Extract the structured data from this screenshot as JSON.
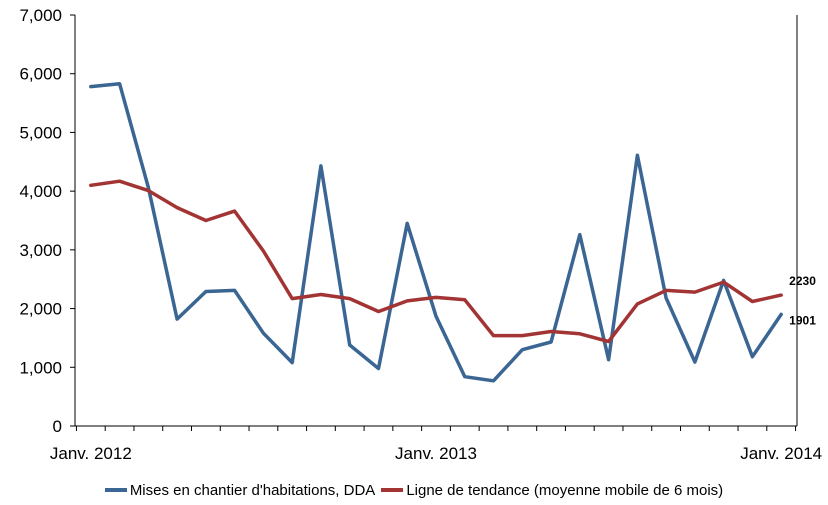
{
  "chart_data": {
    "type": "line",
    "title": "",
    "xlabel": "",
    "ylabel": "",
    "ylim": [
      0,
      7000
    ],
    "yticks": [
      0,
      1000,
      2000,
      3000,
      4000,
      5000,
      6000,
      7000
    ],
    "ytick_labels": [
      "0",
      "1,000",
      "2,000",
      "3,000",
      "4,000",
      "5,000",
      "6,000",
      "7,000"
    ],
    "x_month_ticks": [
      0,
      12,
      24
    ],
    "xtick_labels": [
      "Janv. 2012",
      "Janv. 2013",
      "Janv. 2014"
    ],
    "x_range": [
      -0.55,
      24.55
    ],
    "grid": false,
    "legend_position": "bottom",
    "series": [
      {
        "name": "Mises en chantier d'habitations, DDA",
        "color": "#3b6593",
        "values": [
          5780,
          5830,
          4060,
          1820,
          2290,
          2310,
          1580,
          1080,
          4430,
          1380,
          980,
          3450,
          1870,
          840,
          770,
          1300,
          1430,
          3260,
          1130,
          4610,
          2180,
          1090,
          2480,
          1180,
          1901
        ],
        "end_label": "1901"
      },
      {
        "name": "Ligne de tendance (moyenne mobile de 6 mois)",
        "color": "#a33434",
        "values": [
          4100,
          4170,
          4010,
          3720,
          3500,
          3660,
          2980,
          2170,
          2240,
          2170,
          1950,
          2130,
          2190,
          2150,
          1540,
          1540,
          1610,
          1570,
          1440,
          2080,
          2310,
          2280,
          2450,
          2120,
          2230
        ],
        "end_label": "2230"
      }
    ]
  }
}
